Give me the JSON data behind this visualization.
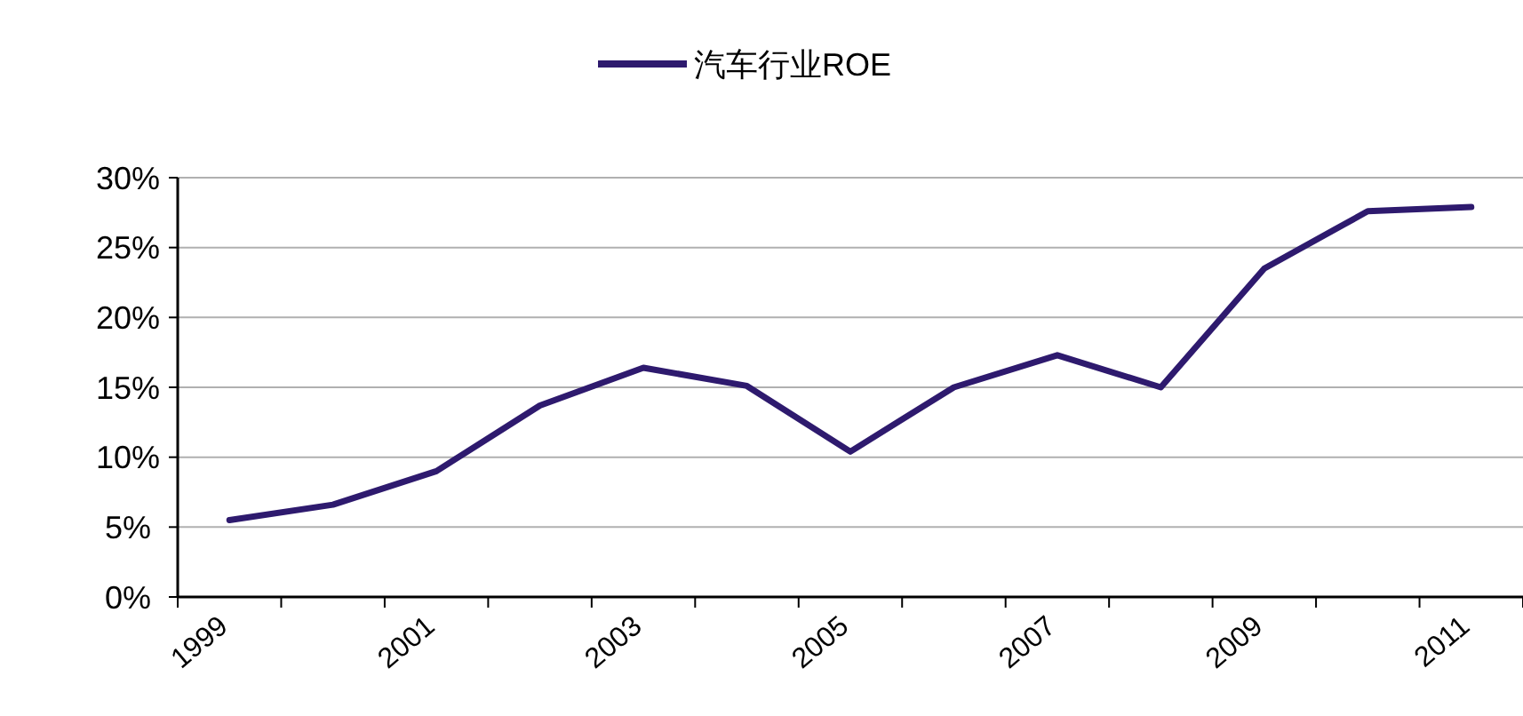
{
  "chart_data": {
    "type": "line",
    "categories": [
      "1999",
      null,
      "2001",
      null,
      "2003",
      null,
      "2005",
      null,
      "2007",
      null,
      "2009",
      null,
      "2011"
    ],
    "series": [
      {
        "name": "汽车行业ROE",
        "color": "#2e1a6e",
        "values": [
          5.5,
          6.6,
          9.0,
          13.7,
          16.4,
          15.1,
          10.4,
          15.0,
          17.3,
          15.0,
          23.5,
          27.6,
          27.9
        ]
      }
    ],
    "ylim": [
      0,
      30
    ],
    "yticks": [
      {
        "value": 0,
        "label": "0%"
      },
      {
        "value": 5,
        "label": "5%"
      },
      {
        "value": 10,
        "label": "10%"
      },
      {
        "value": 15,
        "label": "15%"
      },
      {
        "value": 20,
        "label": "20%"
      },
      {
        "value": 25,
        "label": "25%"
      },
      {
        "value": 30,
        "label": "30%"
      }
    ],
    "grid": "y",
    "legend": "top",
    "marker": "none",
    "line_style": "solid"
  }
}
